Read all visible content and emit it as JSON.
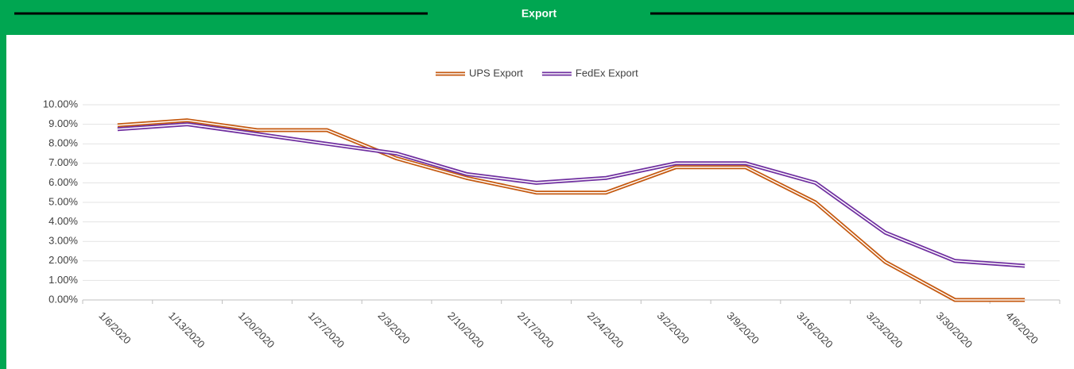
{
  "header": {
    "title": "Export"
  },
  "chart_data": {
    "type": "line",
    "categories": [
      "1/6/2020",
      "1/13/2020",
      "1/20/2020",
      "1/27/2020",
      "2/3/2020",
      "2/10/2020",
      "2/17/2020",
      "2/24/2020",
      "3/2/2020",
      "3/9/2020",
      "3/16/2020",
      "3/23/2020",
      "3/30/2020",
      "4/6/2020"
    ],
    "series": [
      {
        "name": "UPS Export",
        "color": "#c55a11",
        "values": [
          8.95,
          9.2,
          8.7,
          8.7,
          7.25,
          6.25,
          5.5,
          5.5,
          6.8,
          6.8,
          5.0,
          1.95,
          0.0,
          0.0
        ]
      },
      {
        "name": "FedEx Export",
        "color": "#7030a0",
        "values": [
          8.75,
          9.0,
          8.5,
          8.0,
          7.5,
          6.45,
          6.0,
          6.25,
          7.0,
          7.0,
          6.0,
          3.45,
          2.0,
          1.75
        ]
      }
    ],
    "ylim": [
      0,
      10
    ],
    "yticks": [
      {
        "value": 0,
        "label": "0.00%"
      },
      {
        "value": 1,
        "label": "1.00%"
      },
      {
        "value": 2,
        "label": "2.00%"
      },
      {
        "value": 3,
        "label": "3.00%"
      },
      {
        "value": 4,
        "label": "4.00%"
      },
      {
        "value": 5,
        "label": "5.00%"
      },
      {
        "value": 6,
        "label": "6.00%"
      },
      {
        "value": 7,
        "label": "7.00%"
      },
      {
        "value": 8,
        "label": "8.00%"
      },
      {
        "value": 9,
        "label": "9.00%"
      },
      {
        "value": 10,
        "label": "10.00%"
      }
    ],
    "grid": true,
    "legend": "top"
  }
}
